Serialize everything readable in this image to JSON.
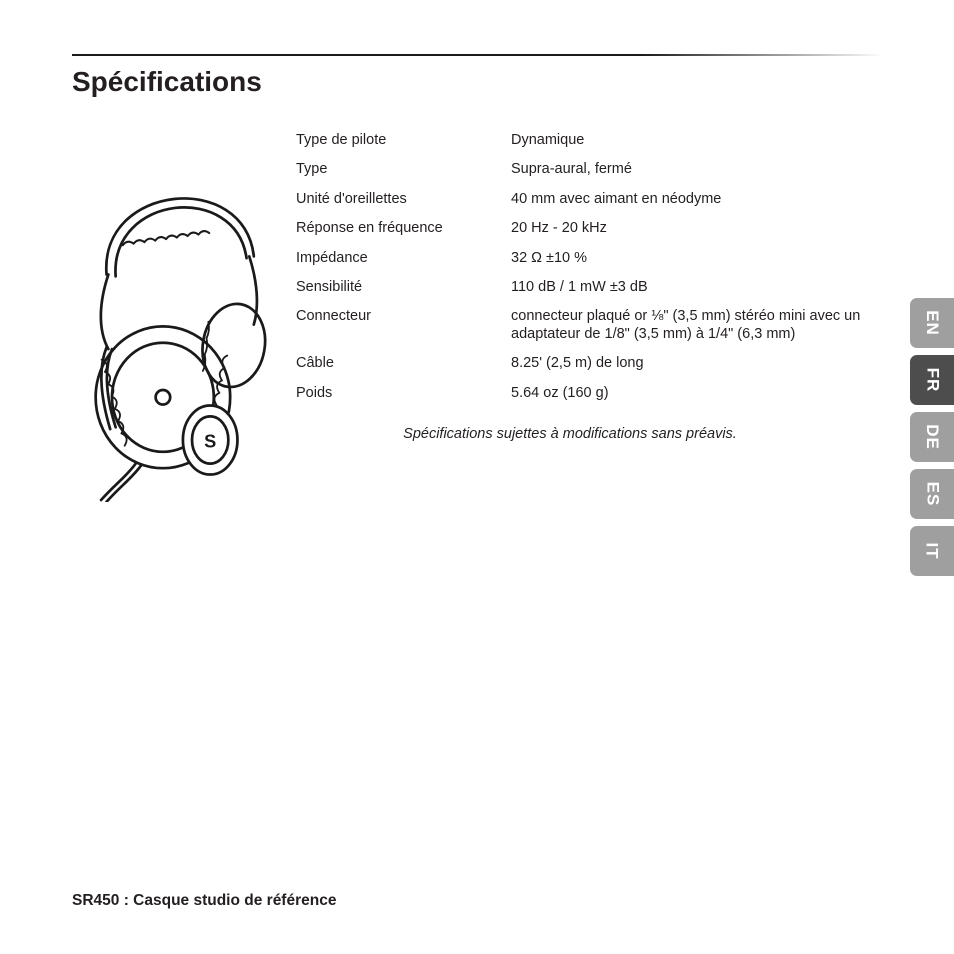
{
  "title": "Spécifications",
  "specs": [
    {
      "label": "Type de pilote",
      "value": "Dynamique"
    },
    {
      "label": "Type",
      "value": "Supra-aural, fermé"
    },
    {
      "label": "Unité d'oreillettes",
      "value": "40 mm avec aimant en néodyme"
    },
    {
      "label": "Réponse en fréquence",
      "value": "20 Hz - 20 kHz"
    },
    {
      "label": "Impédance",
      "value": "32 Ω ±10 %"
    },
    {
      "label": "Sensibilité",
      "value": "110 dB / 1 mW ±3 dB"
    },
    {
      "label": "Connecteur",
      "value": "connecteur plaqué or ⅛\" (3,5 mm) stéréo mini avec un adaptateur de 1/8\" (3,5 mm) à 1/4\" (6,3 mm)"
    },
    {
      "label": "Câble",
      "value": "8.25' (2,5 m) de long"
    },
    {
      "label": "Poids",
      "value": "5.64 oz (160 g)"
    }
  ],
  "disclaimer": "Spécifications sujettes à modifications sans préavis.",
  "footer": "SR450 : Casque studio de référence",
  "lang_tabs": [
    {
      "code": "EN",
      "active": false
    },
    {
      "code": "FR",
      "active": true
    },
    {
      "code": "DE",
      "active": false
    },
    {
      "code": "ES",
      "active": false
    },
    {
      "code": "IT",
      "active": false
    }
  ],
  "colors": {
    "tab_inactive": "#9f9f9f",
    "tab_active": "#4d4d4d",
    "tab_text": "#ffffff",
    "text": "#231f20"
  }
}
